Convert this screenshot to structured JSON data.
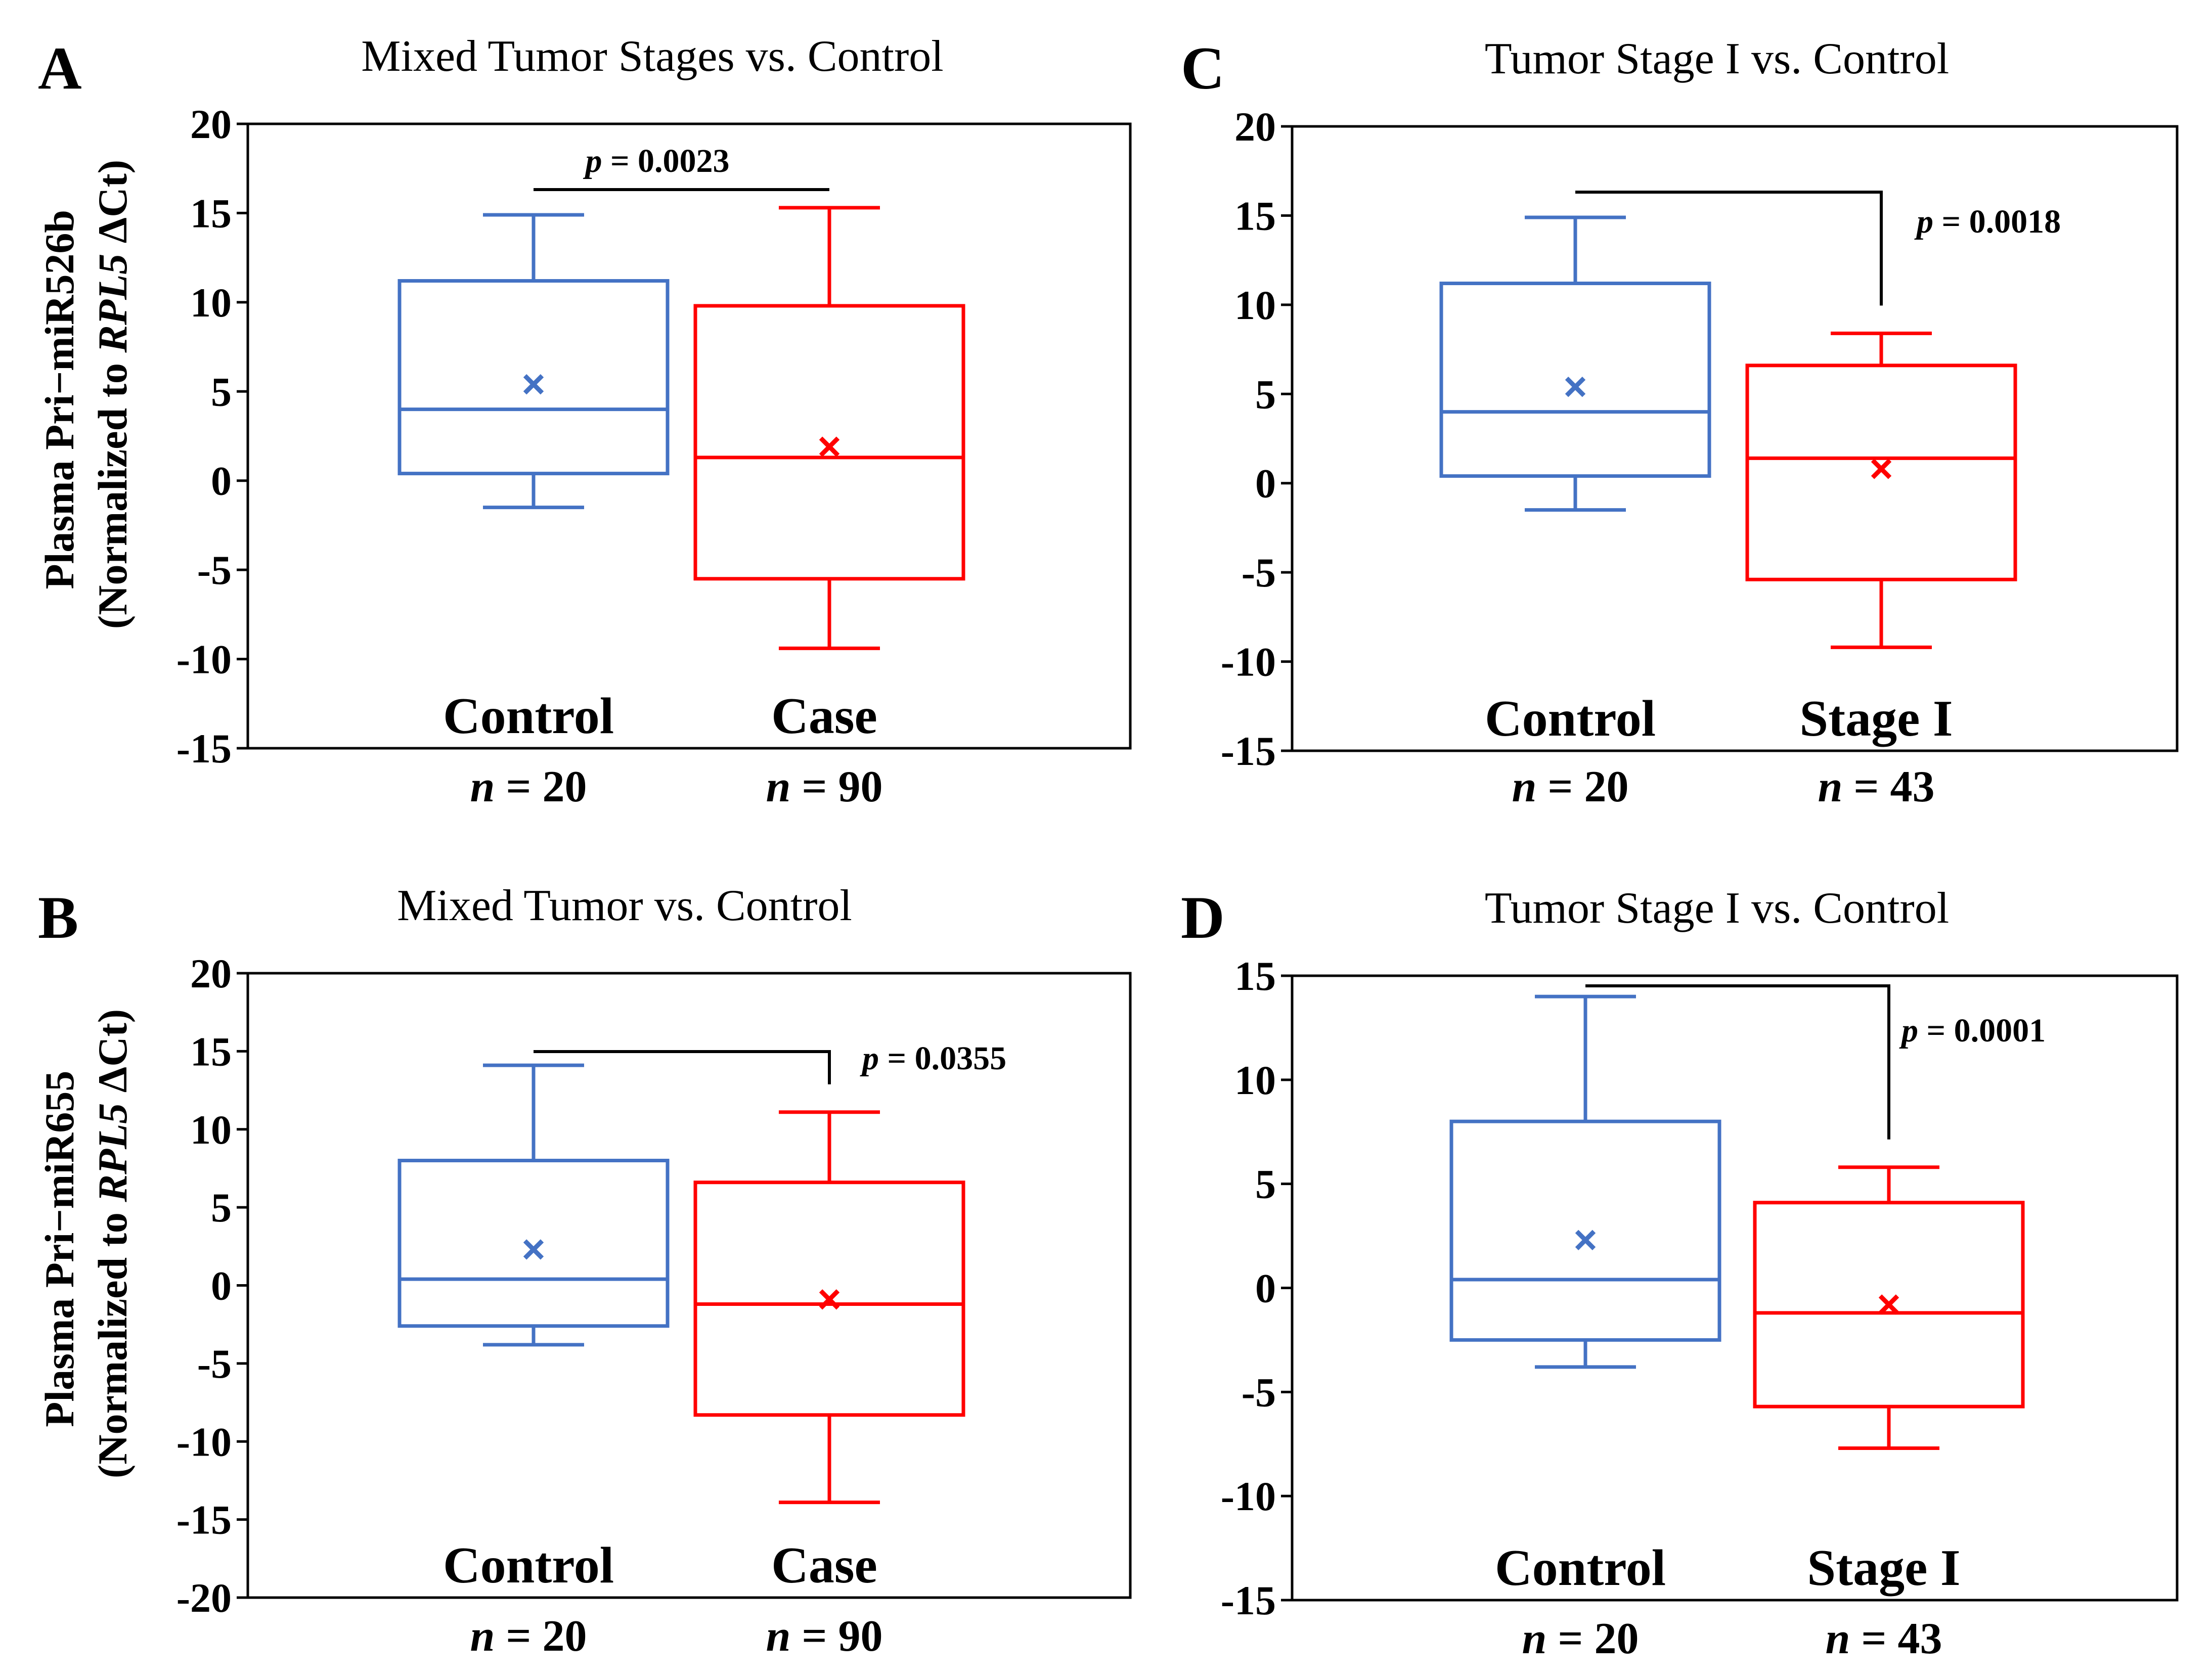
{
  "figure": {
    "y_axis_label_top": {
      "line1": "Plasma Pri−miR526b",
      "line2_prefix": "(Normalized to ",
      "line2_gene": "RPL5",
      "line2_suffix": " ΔCt)"
    },
    "y_axis_label_bottom": {
      "line1": "Plasma Pri−miR655",
      "line2_prefix": "(Normalized to ",
      "line2_gene": "RPL5",
      "line2_suffix": " ΔCt)"
    }
  },
  "chart_data": [
    {
      "panel": "A",
      "type": "box",
      "title": "Mixed Tumor Stages vs. Control",
      "ylim": [
        -15,
        20
      ],
      "yticks": [
        -15,
        -10,
        -5,
        0,
        5,
        10,
        15,
        20
      ],
      "p_prefix": "p",
      "p_value": "= 0.0023",
      "groups": [
        {
          "name": "Control",
          "n_prefix": "n",
          "n_value": "= 20",
          "color": "#4472C4",
          "whisker_low": -1.5,
          "q1": 0.4,
          "median": 4.0,
          "q3": 11.2,
          "whisker_high": 14.9,
          "mean": 5.4
        },
        {
          "name": "Case",
          "n_prefix": "n",
          "n_value": "= 90",
          "color": "#FF0000",
          "whisker_low": -9.4,
          "q1": -5.5,
          "median": 1.3,
          "q3": 9.8,
          "whisker_high": 15.3,
          "mean": 1.9
        }
      ]
    },
    {
      "panel": "B",
      "type": "box",
      "title": "Mixed Tumor vs. Control",
      "ylim": [
        -20,
        20
      ],
      "yticks": [
        -20,
        -15,
        -10,
        -5,
        0,
        5,
        10,
        15,
        20
      ],
      "p_prefix": "p",
      "p_value": "= 0.0355",
      "groups": [
        {
          "name": "Control",
          "n_prefix": "n",
          "n_value": "= 20",
          "color": "#4472C4",
          "whisker_low": -3.8,
          "q1": -2.6,
          "median": 0.4,
          "q3": 8.0,
          "whisker_high": 14.1,
          "mean": 2.3
        },
        {
          "name": "Case",
          "n_prefix": "n",
          "n_value": "= 90",
          "color": "#FF0000",
          "whisker_low": -13.9,
          "q1": -8.3,
          "median": -1.2,
          "q3": 6.6,
          "whisker_high": 11.1,
          "mean": -0.9
        }
      ]
    },
    {
      "panel": "C",
      "type": "box",
      "title": "Tumor Stage I vs. Control",
      "ylim": [
        -15,
        20
      ],
      "yticks": [
        -15,
        -10,
        -5,
        0,
        5,
        10,
        15,
        20
      ],
      "p_prefix": "p",
      "p_value": "= 0.0018",
      "groups": [
        {
          "name": "Control",
          "n_prefix": "n",
          "n_value": "= 20",
          "color": "#4472C4",
          "whisker_low": -1.5,
          "q1": 0.4,
          "median": 4.0,
          "q3": 11.2,
          "whisker_high": 14.9,
          "mean": 5.4
        },
        {
          "name": "Stage I",
          "n_prefix": "n",
          "n_value": "= 43",
          "color": "#FF0000",
          "whisker_low": -9.2,
          "q1": -5.4,
          "median": 1.4,
          "q3": 6.6,
          "whisker_high": 8.4,
          "mean": 0.8
        }
      ]
    },
    {
      "panel": "D",
      "type": "box",
      "title": "Tumor Stage I vs. Control",
      "ylim": [
        -15,
        15
      ],
      "yticks": [
        -15,
        -10,
        -5,
        0,
        5,
        10,
        15
      ],
      "p_prefix": "p",
      "p_value": "= 0.0001",
      "groups": [
        {
          "name": "Control",
          "n_prefix": "n",
          "n_value": "= 20",
          "color": "#4472C4",
          "whisker_low": -3.8,
          "q1": -2.5,
          "median": 0.4,
          "q3": 8.0,
          "whisker_high": 14.0,
          "mean": 2.3
        },
        {
          "name": "Stage I",
          "n_prefix": "n",
          "n_value": "= 43",
          "color": "#FF0000",
          "whisker_low": -7.7,
          "q1": -5.7,
          "median": -1.2,
          "q3": 4.1,
          "whisker_high": 5.8,
          "mean": -0.8
        }
      ]
    }
  ]
}
